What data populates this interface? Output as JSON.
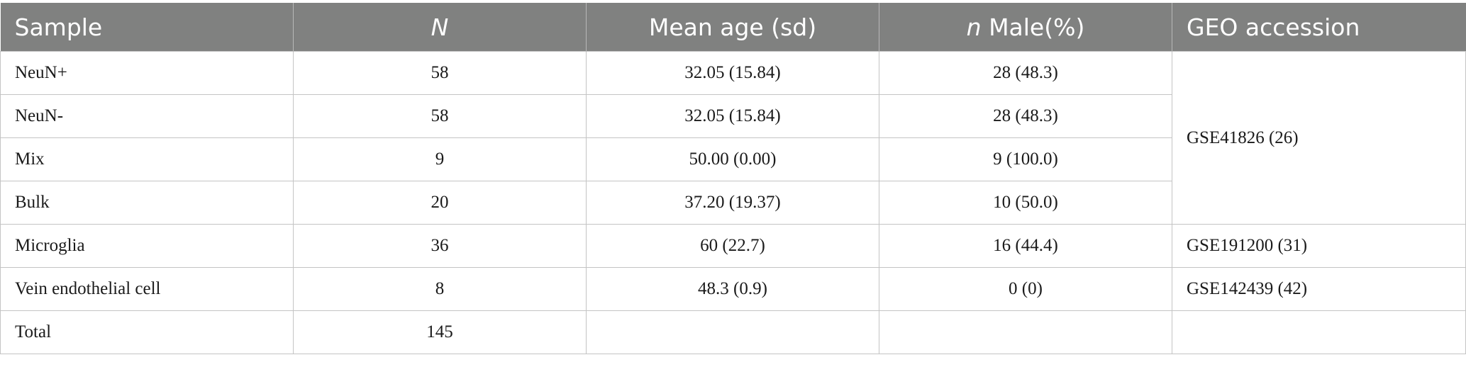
{
  "table": {
    "header": {
      "sample": "Sample",
      "n_label": "N",
      "mean_age": "Mean age (sd)",
      "n_male_prefix": "n",
      "n_male_suffix": " Male(%)",
      "geo": "GEO accession"
    },
    "rows": [
      {
        "sample": "NeuN+",
        "n": "58",
        "mean_age": "32.05 (15.84)",
        "n_male": "28 (48.3)"
      },
      {
        "sample": "NeuN-",
        "n": "58",
        "mean_age": "32.05 (15.84)",
        "n_male": "28 (48.3)"
      },
      {
        "sample": "Mix",
        "n": "9",
        "mean_age": "50.00 (0.00)",
        "n_male": "9 (100.0)"
      },
      {
        "sample": "Bulk",
        "n": "20",
        "mean_age": "37.20 (19.37)",
        "n_male": "10 (50.0)"
      },
      {
        "sample": "Microglia",
        "n": "36",
        "mean_age": "60 (22.7)",
        "n_male": "16 (44.4)",
        "geo": "GSE191200 (31)"
      },
      {
        "sample": "Vein endothelial cell",
        "n": "8",
        "mean_age": "48.3 (0.9)",
        "n_male": "0 (0)",
        "geo": "GSE142439 (42)"
      },
      {
        "sample": "Total",
        "n": "145",
        "mean_age": "",
        "n_male": "",
        "geo": ""
      }
    ],
    "merged_geo": "GSE41826 (26)"
  }
}
